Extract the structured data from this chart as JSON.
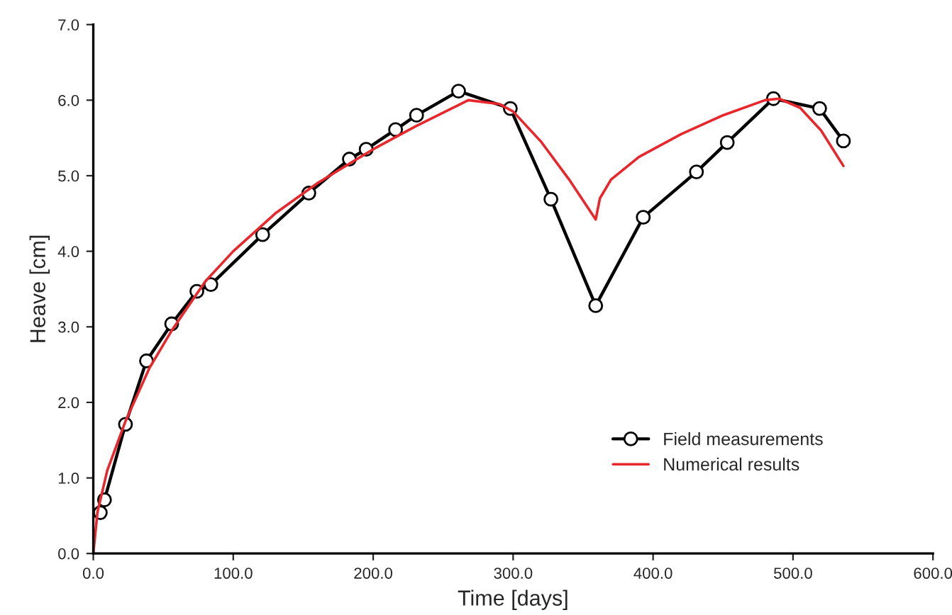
{
  "chart_data": {
    "type": "line",
    "xlabel": "Time [days]",
    "ylabel": "Heave [cm]",
    "xlim": [
      0,
      600
    ],
    "ylim": [
      0,
      7
    ],
    "xticks": [
      {
        "value": 0,
        "label": "0.0"
      },
      {
        "value": 100,
        "label": "100.0"
      },
      {
        "value": 200,
        "label": "200.0"
      },
      {
        "value": 300,
        "label": "300.0"
      },
      {
        "value": 400,
        "label": "400.0"
      },
      {
        "value": 500,
        "label": "500.0"
      },
      {
        "value": 600,
        "label": "600.0"
      }
    ],
    "yticks": [
      {
        "value": 0,
        "label": "0.0"
      },
      {
        "value": 1,
        "label": "1.0"
      },
      {
        "value": 2,
        "label": "2.0"
      },
      {
        "value": 3,
        "label": "3.0"
      },
      {
        "value": 4,
        "label": "4.0"
      },
      {
        "value": 5,
        "label": "5.0"
      },
      {
        "value": 6,
        "label": "6.0"
      },
      {
        "value": 7,
        "label": "7.0"
      }
    ],
    "grid": false,
    "legend": "bottom right",
    "series": [
      {
        "name": "Field measurements",
        "color": "#000000",
        "marker": "circle",
        "x": [
          5,
          8,
          23,
          38,
          56,
          74,
          84,
          121,
          154,
          183,
          195,
          216,
          231,
          261,
          298,
          327,
          359,
          393,
          431,
          453,
          486,
          519,
          536
        ],
        "values": [
          0.54,
          0.71,
          1.71,
          2.55,
          3.04,
          3.47,
          3.56,
          4.22,
          4.77,
          5.22,
          5.35,
          5.61,
          5.8,
          6.12,
          5.89,
          4.69,
          3.28,
          4.45,
          5.05,
          5.44,
          6.02,
          5.89,
          5.46
        ]
      },
      {
        "name": "Numerical results",
        "color": "#e8262b",
        "marker": "none",
        "x": [
          0,
          3,
          10,
          23,
          40,
          56,
          80,
          100,
          130,
          160,
          200,
          230,
          268,
          290,
          300,
          320,
          340,
          359,
          362,
          370,
          390,
          420,
          450,
          480,
          490,
          505,
          520,
          536
        ],
        "values": [
          0,
          0.55,
          1.1,
          1.75,
          2.45,
          2.95,
          3.6,
          4.0,
          4.5,
          4.9,
          5.35,
          5.65,
          6.0,
          5.95,
          5.85,
          5.45,
          4.95,
          4.42,
          4.7,
          4.95,
          5.25,
          5.55,
          5.8,
          6.0,
          6.02,
          5.9,
          5.6,
          5.13
        ]
      }
    ]
  }
}
